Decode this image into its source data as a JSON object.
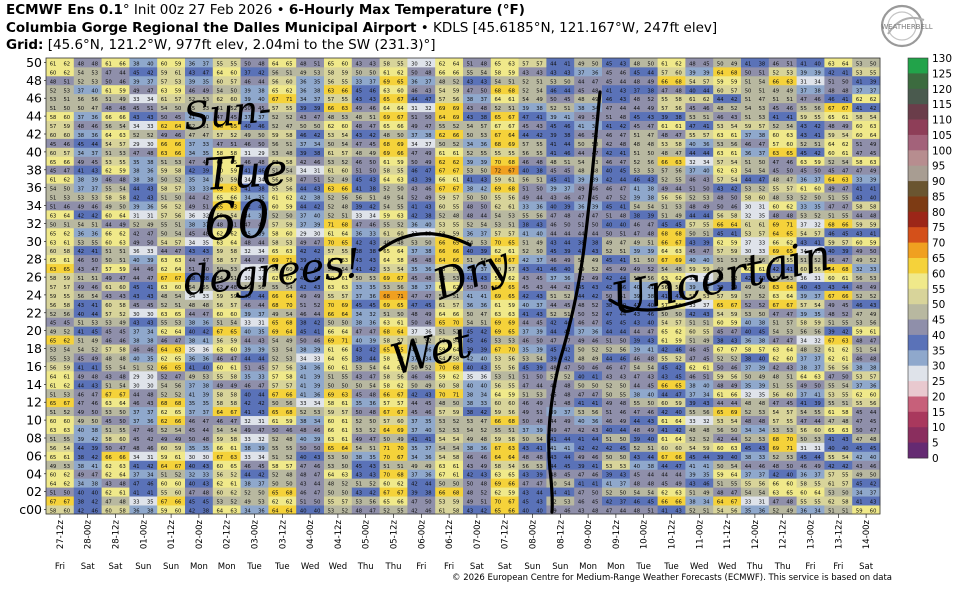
{
  "header": {
    "line1_model": "ECMWF Ens 0.1",
    "line1_init": "° Init 00z 27 Feb 2026 •",
    "line1_product": "6-Hourly Max Temperature (°F)",
    "line2_station": "Columbia Gorge Regional the Dalles Municipal Airport",
    "line2_rest": "• KDLS [45.6185°N, 121.167°W, 247ft elev]",
    "line3_label": "Grid:",
    "line3_rest": "[45.6°N, 121.2°W, 977ft elev, 2.04mi to the SW (231.3)°]"
  },
  "logo_text": "WEATHERBELL",
  "copyright": "© 2026 European Centre for Medium-Range Weather Forecasts (ECMWF). This service is based on data and products",
  "annotations": {
    "left": [
      "Sun-",
      "Tue",
      "60",
      "degrees!"
    ],
    "middle": [
      "Dry",
      "Wet"
    ],
    "right": [
      "Uncertain"
    ]
  },
  "chart_data": {
    "type": "heatmap",
    "title": "6-Hourly Max Temperature (°F)",
    "y_label_ticks": [
      "c00",
      "02",
      "04",
      "06",
      "08",
      "10",
      "12",
      "14",
      "16",
      "18",
      "20",
      "22",
      "24",
      "26",
      "28",
      "30",
      "32",
      "34",
      "36",
      "38",
      "40",
      "42",
      "44",
      "46",
      "48",
      "50"
    ],
    "x": [
      "27-12z",
      "28-00z",
      "28-12z",
      "01-00z",
      "01-12z",
      "02-00z",
      "02-12z",
      "03-00z",
      "03-12z",
      "04-00z",
      "04-12z",
      "05-00z",
      "05-12z",
      "06-00z",
      "06-12z",
      "07-00z",
      "07-12z",
      "08-00z",
      "08-12z",
      "09-00z",
      "09-12z",
      "10-00z",
      "10-12z",
      "11-00z",
      "11-12z",
      "12-00z",
      "12-12z",
      "13-00z",
      "13-12z",
      "14-00z"
    ],
    "x_days": [
      "Fri",
      "Sat",
      "Sat",
      "Sun",
      "Sun",
      "Mon",
      "Mon",
      "Tue",
      "Tue",
      "Wed",
      "Wed",
      "Thu",
      "Thu",
      "Fri",
      "Fri",
      "Sat",
      "Sat",
      "Sun",
      "Sun",
      "Mon",
      "Mon",
      "Tue",
      "Tue",
      "Wed",
      "Wed",
      "Thu",
      "Thu",
      "Fri",
      "Fri",
      "Sat"
    ],
    "members": 51,
    "colorbar": {
      "ticks": [
        130,
        125,
        120,
        115,
        110,
        105,
        100,
        95,
        90,
        85,
        80,
        75,
        70,
        65,
        60,
        55,
        50,
        45,
        40,
        35,
        30,
        25,
        20,
        15,
        10,
        5,
        0
      ],
      "colors": [
        "#22a34a",
        "#3c6b3f",
        "#4a5a4e",
        "#6a3d4a",
        "#8e3e58",
        "#a3627a",
        "#b78d8f",
        "#a89d92",
        "#6a5530",
        "#7d3b14",
        "#9c2618",
        "#d4501a",
        "#f0a020",
        "#f5d23a",
        "#f0e98a",
        "#d8d49a",
        "#b8b8a0",
        "#8f8faa",
        "#5a72b8",
        "#8fa8cc",
        "#dfe3ea",
        "#e9c9cf",
        "#c7607a",
        "#a9385d",
        "#8a2e5e",
        "#652a72",
        "#2a1f8a"
      ]
    },
    "member_means": [
      56,
      44,
      55,
      40,
      57,
      43,
      57,
      41,
      59,
      42,
      59,
      44,
      60,
      43,
      59,
      44,
      60,
      45,
      45,
      45,
      47,
      46,
      53,
      46,
      54,
      46,
      55,
      47,
      55,
      48
    ]
  }
}
